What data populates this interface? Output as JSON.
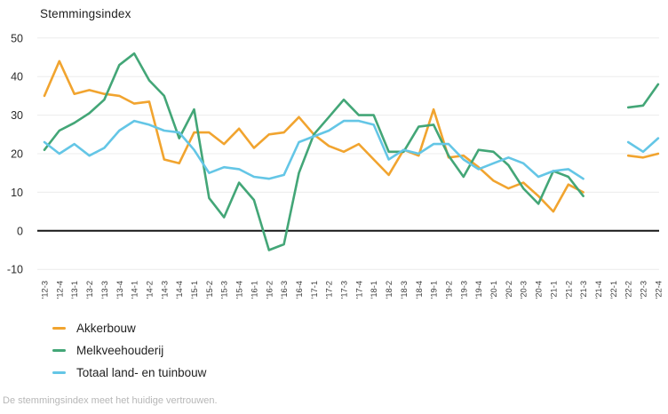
{
  "title": "Stemmingsindex",
  "footer": "De stemmingsindex meet het huidige vertrouwen.",
  "chart_data": {
    "type": "line",
    "title": "Stemmingsindex",
    "xlabel": "",
    "ylabel": "",
    "ylim": [
      -10,
      50
    ],
    "ytick_step": 10,
    "grid": "horizontal",
    "zero_line": true,
    "legend_position": "bottom-left",
    "note": "gap in all series at '21-4 and '22-1",
    "categories": [
      "'12-3",
      "'12-4",
      "'13-1",
      "'13-2",
      "'13-3",
      "'13-4",
      "'14-1",
      "'14-2",
      "'14-3",
      "'14-4",
      "'15-1",
      "'15-2",
      "'15-3",
      "'15-4",
      "'16-1",
      "'16-2",
      "'16-3",
      "'16-4",
      "'17-1",
      "'17-2",
      "'17-3",
      "'17-4",
      "'18-1",
      "'18-2",
      "'18-3",
      "'18-4",
      "'19-1",
      "'19-2",
      "'19-3",
      "'19-4",
      "'20-1",
      "'20-2",
      "'20-3",
      "'20-4",
      "'21-1",
      "'21-2",
      "'21-3",
      "'21-4",
      "'22-1",
      "'22-2",
      "'22-3",
      "'22-4"
    ],
    "series": [
      {
        "name": "Akkerbouw",
        "color": "#F1A42F",
        "values": [
          35,
          44,
          35.5,
          36.5,
          35.5,
          35,
          33,
          33.5,
          18.5,
          17.5,
          25.5,
          25.5,
          22.5,
          26.5,
          21.5,
          25,
          25.5,
          29.5,
          25,
          22,
          20.5,
          22.5,
          18.5,
          14.5,
          21,
          19.5,
          31.5,
          19,
          19.5,
          16.5,
          13,
          11,
          12.5,
          9,
          5,
          12,
          10,
          null,
          null,
          19.5,
          19,
          20
        ]
      },
      {
        "name": "Melkveehouderij",
        "color": "#43A677",
        "values": [
          21,
          26,
          28,
          30.5,
          34,
          43,
          46,
          39,
          35,
          24,
          31.5,
          8.5,
          3.5,
          12.5,
          8,
          -5,
          -3.5,
          15,
          25,
          29.5,
          34,
          30,
          30,
          20.5,
          20.5,
          27,
          27.5,
          19.5,
          14,
          21,
          20.5,
          17,
          11,
          7,
          15.5,
          14,
          9,
          null,
          null,
          32,
          32.5,
          38
        ]
      },
      {
        "name": "Totaal land- en tuinbouw",
        "color": "#64C6E6",
        "values": [
          23,
          20,
          22.5,
          19.5,
          21.5,
          26,
          28.5,
          27.5,
          26,
          25.5,
          21,
          15,
          16.5,
          16,
          14,
          13.5,
          14.5,
          23,
          24.5,
          26,
          28.5,
          28.5,
          27.5,
          18.5,
          21,
          20,
          22.5,
          22.5,
          18.5,
          16,
          17.5,
          19,
          17.5,
          14,
          15.5,
          16,
          13.5,
          null,
          null,
          23,
          20.5,
          24
        ]
      }
    ]
  }
}
